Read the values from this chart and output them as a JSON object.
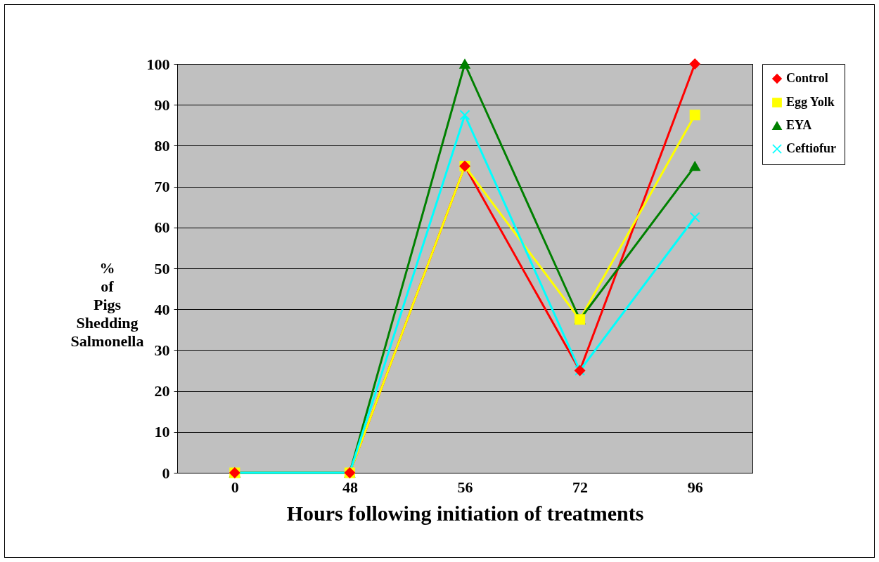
{
  "chart_data": {
    "type": "line",
    "xlabel": "Hours following initiation of treatments",
    "ylabel": "% of Pigs Shedding Salmonella",
    "categories": [
      "0",
      "48",
      "56",
      "72",
      "96"
    ],
    "series": [
      {
        "name": "Control",
        "color": "#ff0000",
        "marker": "diamond",
        "values": [
          0,
          0,
          75,
          25,
          100
        ]
      },
      {
        "name": "Egg Yolk",
        "color": "#ffff00",
        "marker": "square",
        "values": [
          0,
          0,
          75,
          37.5,
          87.5
        ]
      },
      {
        "name": "EYA",
        "color": "#008000",
        "marker": "triangle",
        "values": [
          0,
          0,
          100,
          37.5,
          75
        ]
      },
      {
        "name": "Ceftiofur",
        "color": "#00ffff",
        "marker": "cross",
        "values": [
          0,
          0,
          87.5,
          25,
          62.5
        ]
      }
    ],
    "ylim": [
      0,
      100
    ],
    "yticks": [
      0,
      10,
      20,
      30,
      40,
      50,
      60,
      70,
      80,
      90,
      100
    ],
    "grid": "y",
    "legend": "right"
  }
}
